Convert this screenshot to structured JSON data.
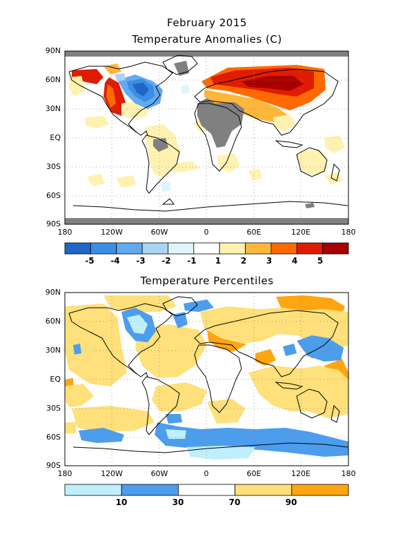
{
  "header": {
    "title": "February 2015",
    "subtitle": "Temperature Anomalies (C)"
  },
  "panel2": {
    "title": "Temperature Percentiles"
  },
  "map_axes": {
    "y_labels": [
      "90N",
      "60N",
      "30N",
      "EQ",
      "30S",
      "60S",
      "90S"
    ],
    "x_labels": [
      "180",
      "120W",
      "60W",
      "0",
      "60E",
      "120E",
      "180"
    ]
  },
  "anomaly_legend": {
    "labels": [
      "-5",
      "-4",
      "-3",
      "-2",
      "-1",
      "1",
      "2",
      "3",
      "4",
      "5"
    ],
    "colors": [
      "#1f66c6",
      "#3b8ee6",
      "#63a9f0",
      "#a8d4f6",
      "#dff4fb",
      "#ffffff",
      "#fff2b0",
      "#ffb73a",
      "#ff6a00",
      "#e01c00",
      "#a80000"
    ]
  },
  "percentile_legend": {
    "labels": [
      "10",
      "30",
      "70",
      "90"
    ],
    "colors": [
      "#bfeefc",
      "#4d9ded",
      "#ffffff",
      "#ffe07a",
      "#ffa511"
    ]
  },
  "colors": {
    "missing": "#808080"
  }
}
